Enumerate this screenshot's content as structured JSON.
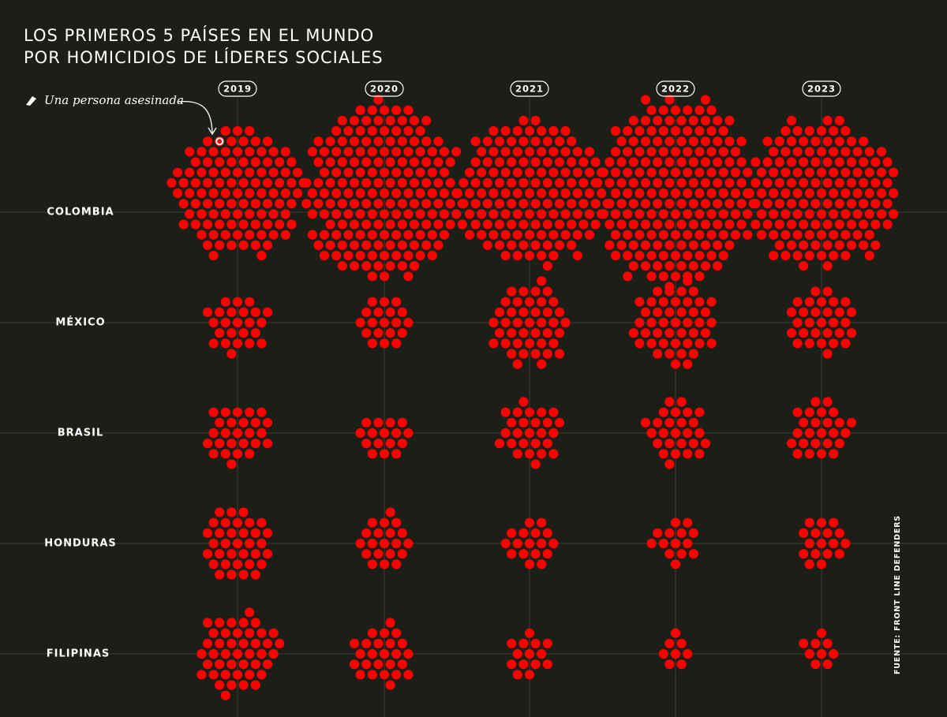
{
  "chart_data": {
    "type": "dot",
    "title": [
      "LOS PRIMEROS 5 PAÍSES EN EL MUNDO",
      "POR HOMICIDIOS DE LÍDERES SOCIALES"
    ],
    "categories": [
      "2019",
      "2020",
      "2021",
      "2022",
      "2023"
    ],
    "color": "#ff0000",
    "legend": "Una persona asesinada",
    "source": "FUENTE: FRONT LINE DEFENDERS",
    "series": [
      {
        "name": "COLOMBIA",
        "values": [
          106,
          177,
          138,
          186,
          142
        ]
      },
      {
        "name": "MÉXICO",
        "values": [
          24,
          19,
          42,
          45,
          30
        ]
      },
      {
        "name": "BRASIL",
        "values": [
          26,
          16,
          26,
          26,
          25
        ]
      },
      {
        "name": "HONDURAS",
        "values": [
          34,
          20,
          17,
          14,
          17
        ]
      },
      {
        "name": "FILIPINAS",
        "values": [
          43,
          25,
          14,
          8,
          9
        ]
      }
    ]
  }
}
